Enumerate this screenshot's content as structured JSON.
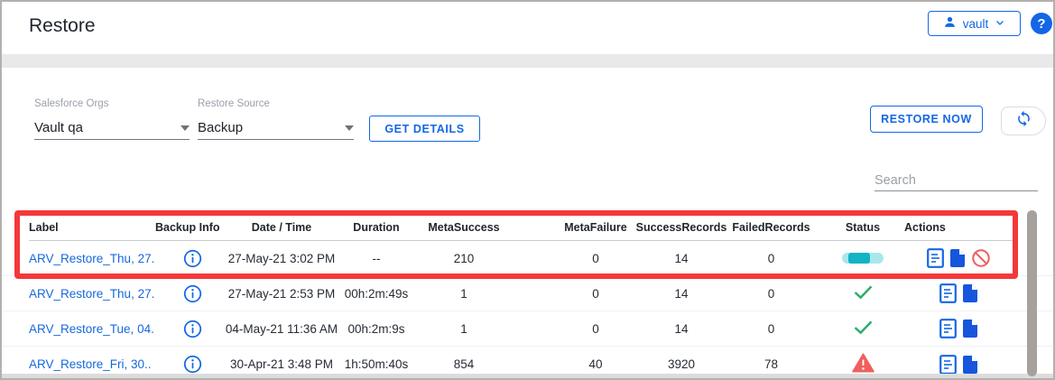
{
  "window": {
    "title": "Restore"
  },
  "header": {
    "user_button_label": "vault",
    "help_label": "?"
  },
  "filters": {
    "salesforce_orgs_label": "Salesforce Orgs",
    "salesforce_orgs_value": "Vault qa",
    "restore_source_label": "Restore Source",
    "restore_source_value": "Backup",
    "get_details_label": "GET DETAILS"
  },
  "toolbar": {
    "restore_now_label": "RESTORE NOW"
  },
  "search": {
    "placeholder": "Search"
  },
  "table": {
    "columns": [
      "Label",
      "Backup Info",
      "Date / Time",
      "Duration",
      "MetaSuccess",
      "MetaFailure",
      "SuccessRecords",
      "FailedRecords",
      "Status",
      "Actions"
    ],
    "rows": [
      {
        "label": "ARV_Restore_Thu, 27..",
        "backup_info": "info-icon",
        "date_time": "27-May-21 3:02 PM",
        "duration": "--",
        "meta_success": "210",
        "meta_failure": "0",
        "success_records": "14",
        "failed_records": "0",
        "status": "in-progress",
        "actions": [
          "restore-log",
          "restore-file",
          "cancel-restore"
        ]
      },
      {
        "label": "ARV_Restore_Thu, 27..",
        "backup_info": "info-icon",
        "date_time": "27-May-21 2:53 PM",
        "duration": "00h:2m:49s",
        "meta_success": "1",
        "meta_failure": "0",
        "success_records": "14",
        "failed_records": "0",
        "status": "success",
        "actions": [
          "restore-log",
          "restore-file"
        ]
      },
      {
        "label": "ARV_Restore_Tue, 04..",
        "backup_info": "info-icon",
        "date_time": "04-May-21 11:36 AM",
        "duration": "00h:2m:9s",
        "meta_success": "1",
        "meta_failure": "0",
        "success_records": "14",
        "failed_records": "0",
        "status": "success",
        "actions": [
          "restore-log",
          "restore-file"
        ]
      },
      {
        "label": "ARV_Restore_Fri, 30..",
        "backup_info": "info-icon",
        "date_time": "30-Apr-21 3:48 PM",
        "duration": "1h:50m:40s",
        "meta_success": "854",
        "meta_failure": "40",
        "success_records": "3920",
        "failed_records": "78",
        "status": "failed",
        "actions": [
          "restore-log",
          "restore-file"
        ]
      }
    ]
  },
  "colors": {
    "accent_blue": "#1467e6",
    "success_green": "#2bac6e",
    "error_red": "#f15f5f",
    "progress_teal": "#12b3c3",
    "progress_track": "#a9e7ea",
    "annotation_red": "#f4383a"
  }
}
